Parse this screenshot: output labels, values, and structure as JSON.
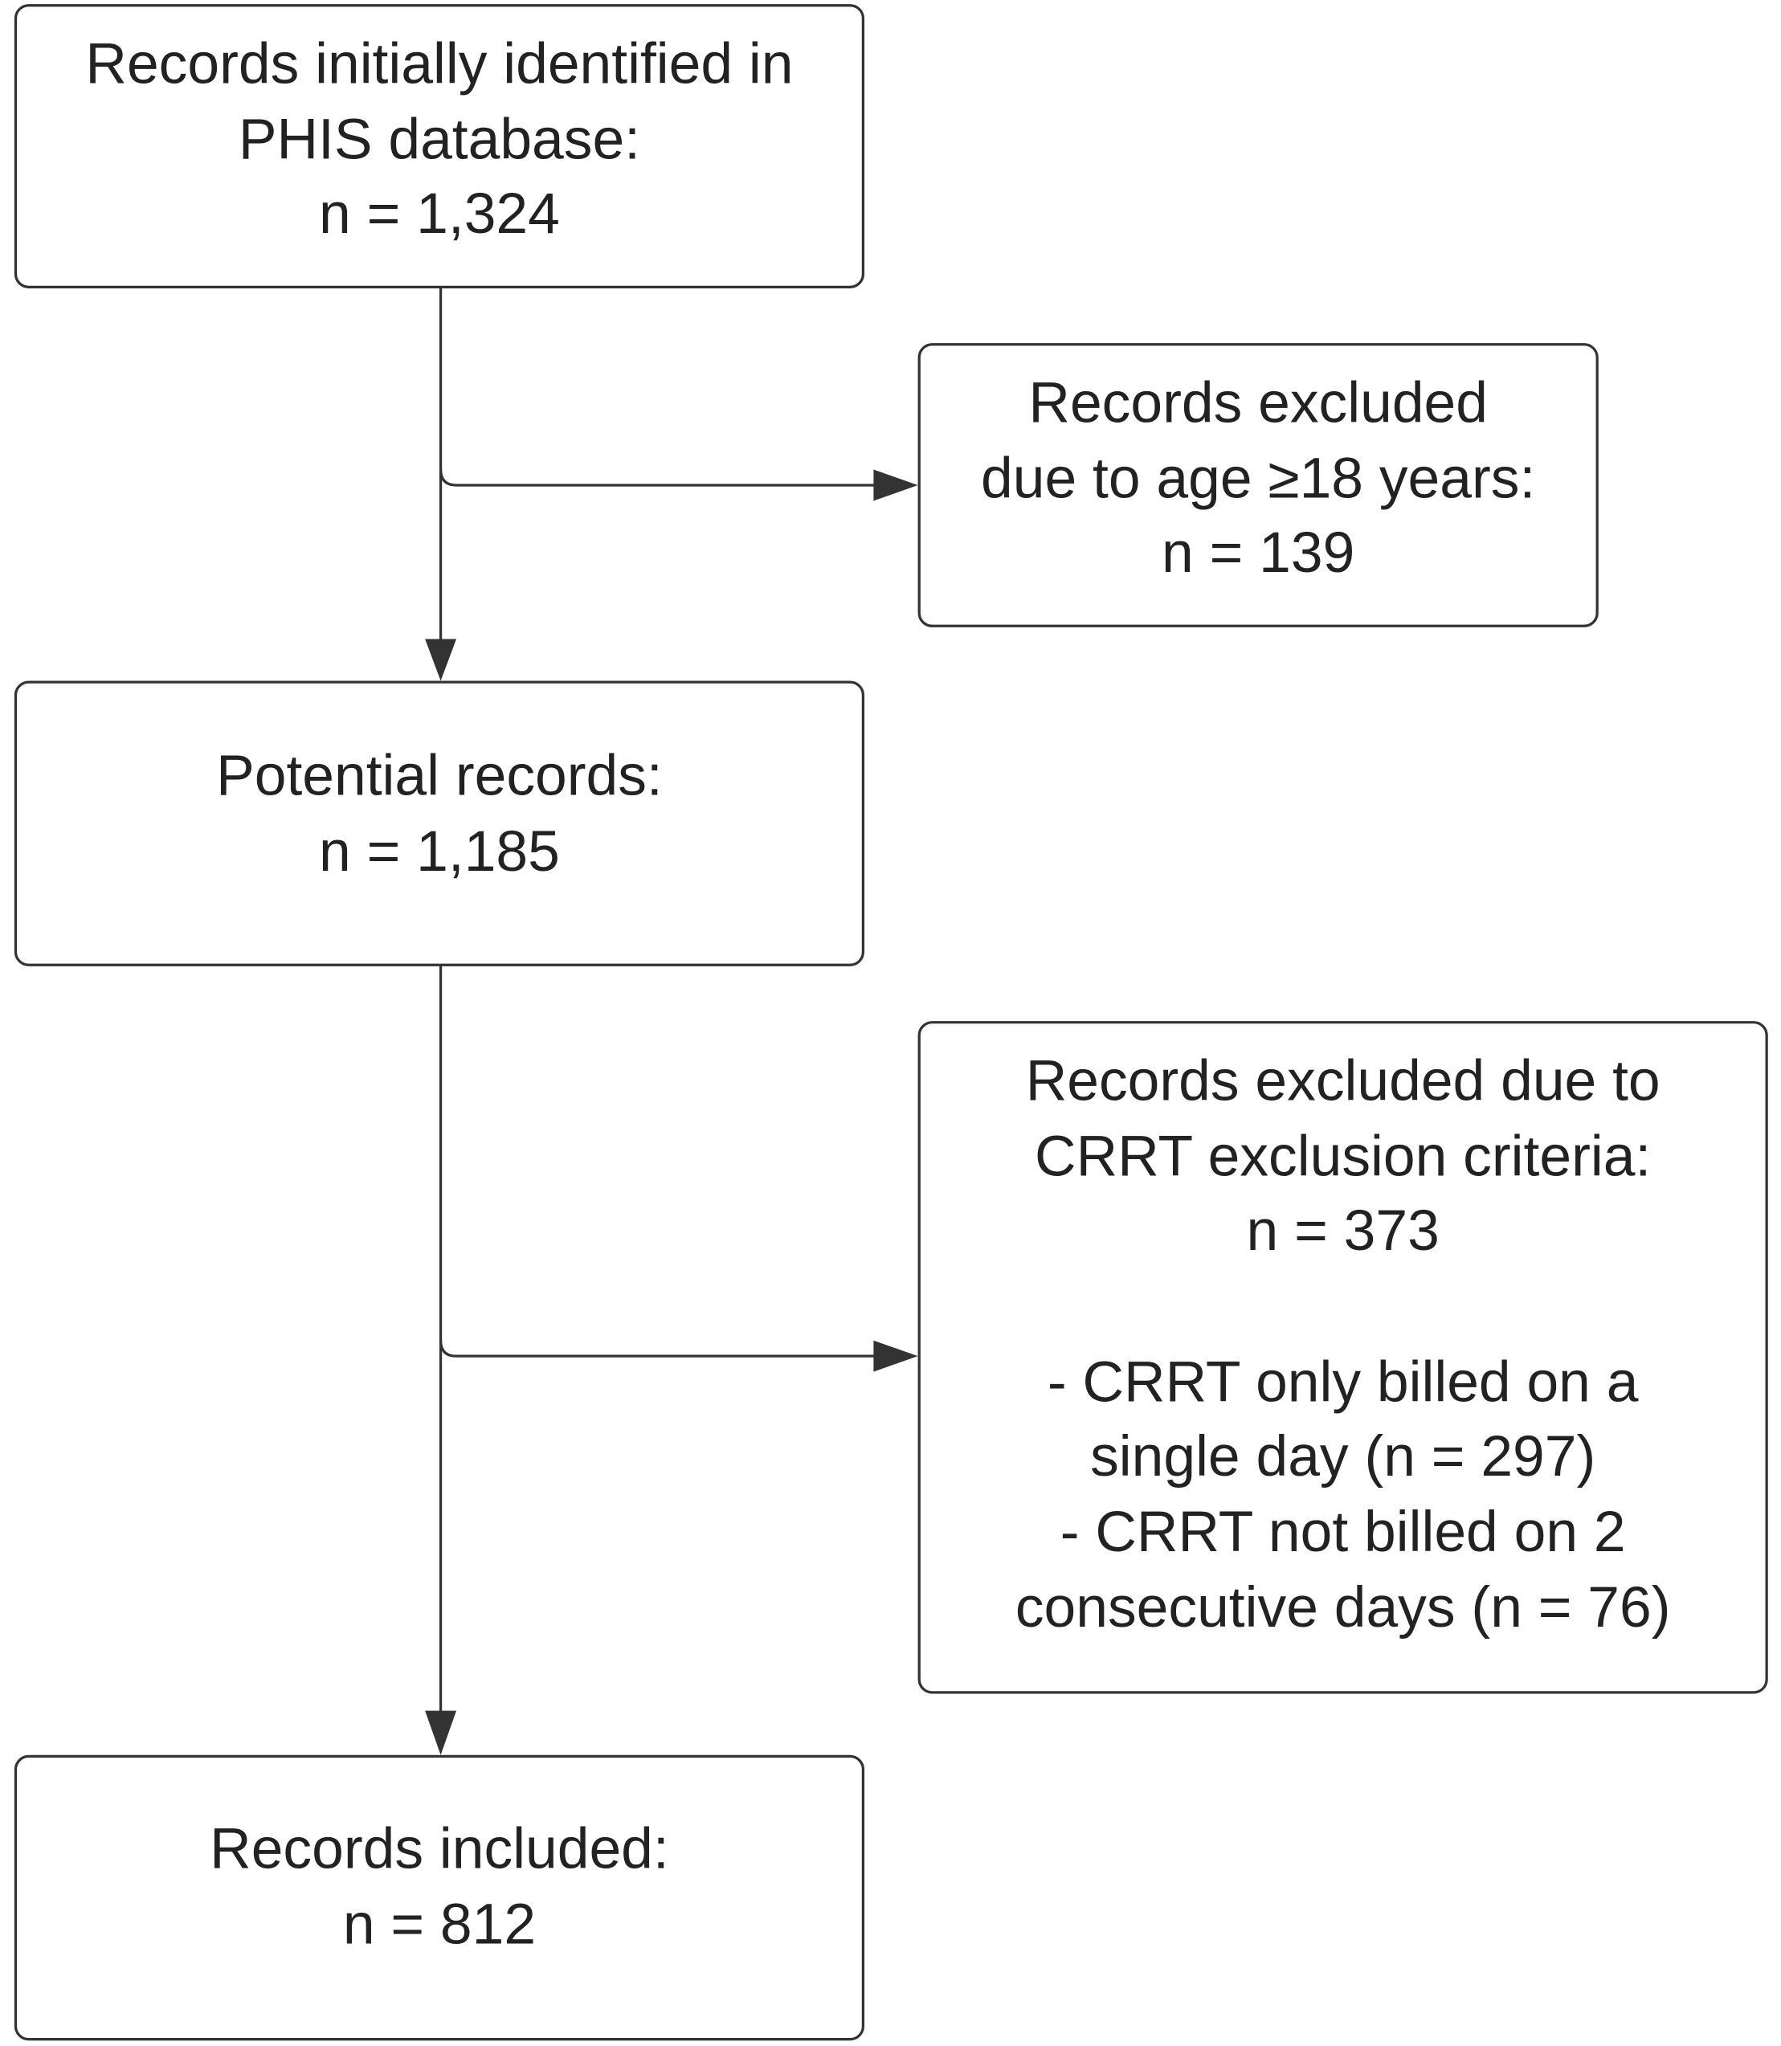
{
  "nodes": [
    {
      "lines": [
        "Records initially identified in",
        "PHIS database:",
        "n = 1,324"
      ]
    },
    {
      "lines": [
        "Records excluded",
        "due to age ≥18 years:",
        "n = 139"
      ]
    },
    {
      "lines": [
        "Potential records:",
        "n = 1,185"
      ]
    },
    {
      "lines": [
        "Records excluded due to",
        "CRRT exclusion criteria:",
        "n = 373",
        "- CRRT only billed on a",
        "single day (n = 297)",
        "- CRRT not billed on 2",
        "consecutive days (n = 76)"
      ]
    },
    {
      "lines": [
        "Records included:",
        "n = 812"
      ]
    }
  ]
}
